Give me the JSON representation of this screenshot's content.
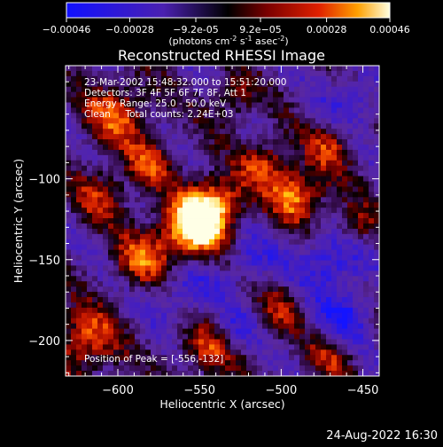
{
  "colorbar": {
    "ticks": [
      "-0.00046",
      "-0.00028",
      "-9.2e-05",
      "9.2e-05",
      "0.00028",
      "0.00046"
    ],
    "unit_main": "(photons cm",
    "unit_exp1": "-2",
    "unit_mid1": " s",
    "unit_exp2": "-1",
    "unit_mid2": " asec",
    "unit_exp3": "-2",
    "unit_end": ")",
    "range": [
      -0.00046,
      0.00046
    ]
  },
  "chart_data": {
    "type": "heatmap",
    "title": "Reconstructed RHESSI Image",
    "xlabel": "Heliocentric X (arcsec)",
    "ylabel": "Heliocentric Y (arcsec)",
    "xlim": [
      -632,
      -440
    ],
    "ylim": [
      -222,
      -30
    ],
    "x_ticks": [
      -600,
      -550,
      -500,
      -450
    ],
    "y_ticks": [
      -100,
      -150,
      -200
    ],
    "x_tick_labels": [
      "−600",
      "−550",
      "−500",
      "−450"
    ],
    "y_tick_labels": [
      "−100",
      "−150",
      "−200"
    ],
    "annotations": [
      "23-Mar-2002 15:48:32.000 to 15:51:20.000",
      "Detectors: 3F 4F 5F 6F 7F 8F, Att 1",
      "Energy Range: 25.0 - 50.0 keV",
      "Clean     Total counts: 2.24E+03"
    ],
    "peak_label": "Position of Peak = [-556,-132]",
    "peak": [
      -556,
      -132
    ],
    "colormap": [
      "#1010ff",
      "#3a1ab0",
      "#5a2aa0",
      "#000000",
      "#7a0000",
      "#d01800",
      "#ff6000",
      "#ffc000",
      "#ffffff"
    ]
  },
  "footer": {
    "timestamp": "24-Aug-2022 16:30"
  }
}
